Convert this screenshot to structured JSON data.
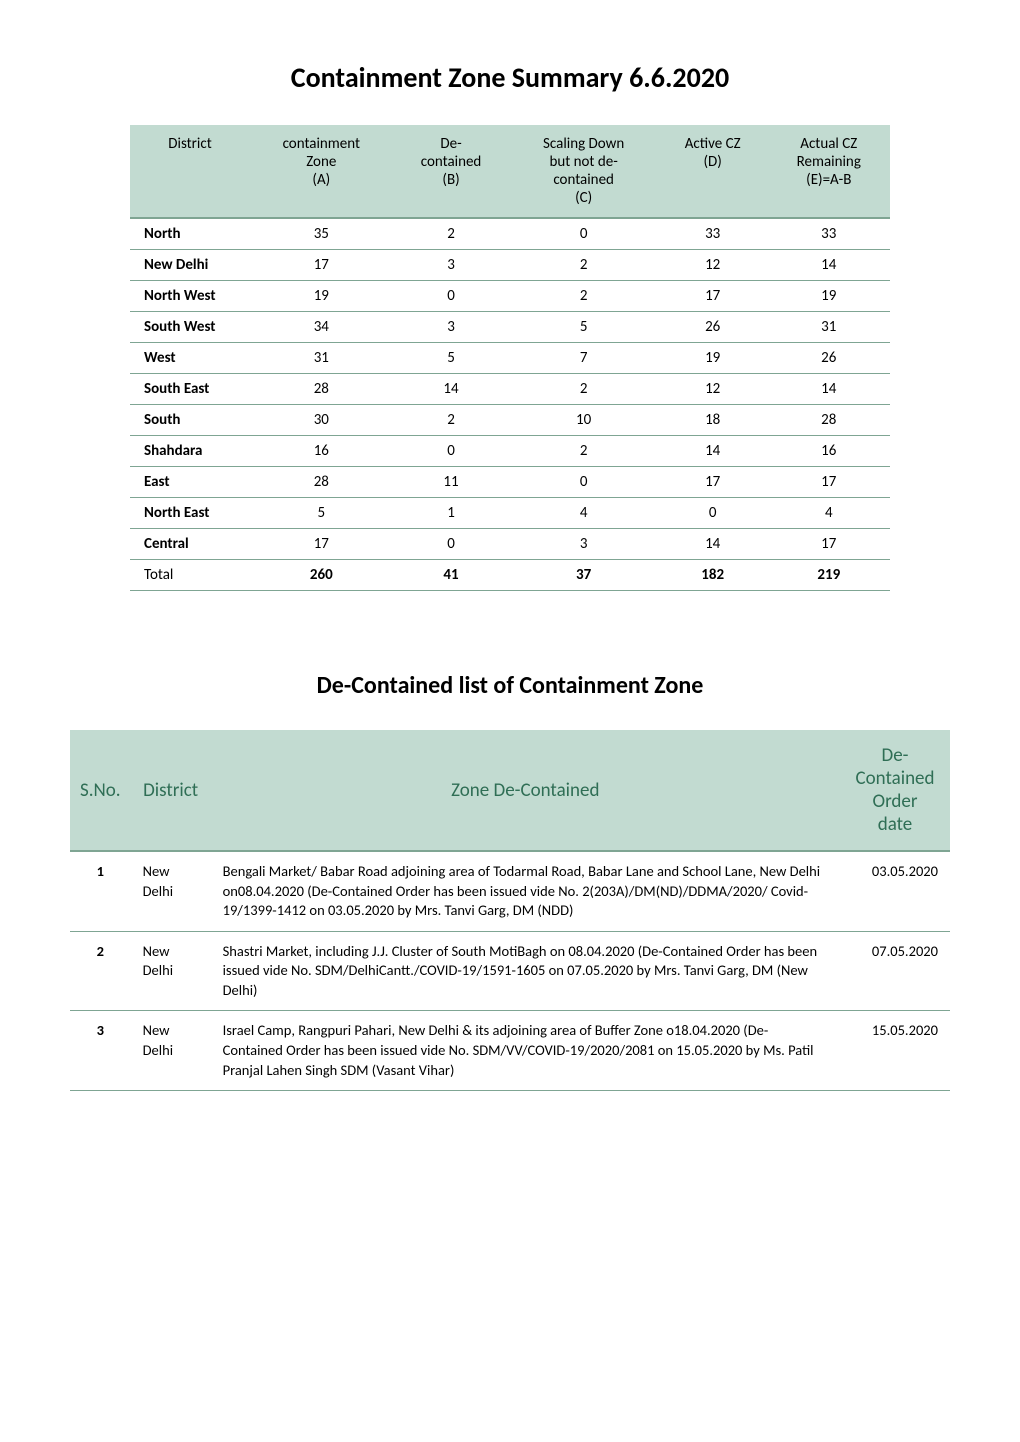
{
  "titles": {
    "main": "Containment Zone Summary 6.6.2020",
    "sub": "De-Contained list of Containment Zone"
  },
  "summary": {
    "headers": {
      "district": "District",
      "a": "containment\nZone\n(A)",
      "b": "De-\ncontained\n(B)",
      "c": "Scaling Down\nbut not de-\ncontained\n(C)",
      "d": "Active CZ\n(D)",
      "e": "Actual CZ\nRemaining\n(E)=A-B"
    },
    "rows": [
      {
        "district": "North",
        "a": 35,
        "b": 2,
        "c": 0,
        "d": 33,
        "e": 33
      },
      {
        "district": "New Delhi",
        "a": 17,
        "b": 3,
        "c": 2,
        "d": 12,
        "e": 14
      },
      {
        "district": "North West",
        "a": 19,
        "b": 0,
        "c": 2,
        "d": 17,
        "e": 19
      },
      {
        "district": "South West",
        "a": 34,
        "b": 3,
        "c": 5,
        "d": 26,
        "e": 31
      },
      {
        "district": "West",
        "a": 31,
        "b": 5,
        "c": 7,
        "d": 19,
        "e": 26
      },
      {
        "district": "South East",
        "a": 28,
        "b": 14,
        "c": 2,
        "d": 12,
        "e": 14
      },
      {
        "district": "South",
        "a": 30,
        "b": 2,
        "c": 10,
        "d": 18,
        "e": 28
      },
      {
        "district": "Shahdara",
        "a": 16,
        "b": 0,
        "c": 2,
        "d": 14,
        "e": 16
      },
      {
        "district": "East",
        "a": 28,
        "b": 11,
        "c": 0,
        "d": 17,
        "e": 17
      },
      {
        "district": "North East",
        "a": 5,
        "b": 1,
        "c": 4,
        "d": 0,
        "e": 4
      },
      {
        "district": "Central",
        "a": 17,
        "b": 0,
        "c": 3,
        "d": 14,
        "e": 17
      }
    ],
    "total": {
      "label": "Total",
      "a": 260,
      "b": 41,
      "c": 37,
      "d": 182,
      "e": 219
    }
  },
  "decontained": {
    "headers": {
      "sno": "S.No.",
      "district": "District",
      "zone": "Zone De-Contained",
      "date": "De-\nContained\nOrder\ndate"
    },
    "rows": [
      {
        "sno": "1",
        "district": "New\nDelhi",
        "zone": "Bengali Market/ Babar Road adjoining area of  Todarmal Road, Babar Lane and School Lane, New Delhi on08.04.2020 (De-Contained Order has been issued vide No. 2(203A)/DM(ND)/DDMA/2020/ Covid-19/1399-1412 on 03.05.2020 by Mrs. Tanvi Garg, DM (NDD)",
        "date": "03.05.2020"
      },
      {
        "sno": "2",
        "district": "New\nDelhi",
        "zone": "Shastri Market, including  J.J. Cluster of South MotiBagh on 08.04.2020 (De-Contained Order has been issued vide No. SDM/DelhiCantt./COVID-19/1591-1605  on 07.05.2020 by Mrs. Tanvi Garg, DM (New Delhi)",
        "date": "07.05.2020"
      },
      {
        "sno": "3",
        "district": "New\nDelhi",
        "zone": "Israel Camp, Rangpuri Pahari, New Delhi & its adjoining area of Buffer Zone o18.04.2020 (De-Contained Order has been issued vide No. SDM/VV/COVID-19/2020/2081  on 15.05.2020 by Ms. Patil Pranjal Lahen Singh SDM (Vasant Vihar)",
        "date": "15.05.2020"
      }
    ]
  },
  "colors": {
    "header_bg": "#c2dbd1",
    "header_text_green": "#2f6e55",
    "border": "#7fa593",
    "body_text": "#000000",
    "page_bg": "#ffffff"
  }
}
